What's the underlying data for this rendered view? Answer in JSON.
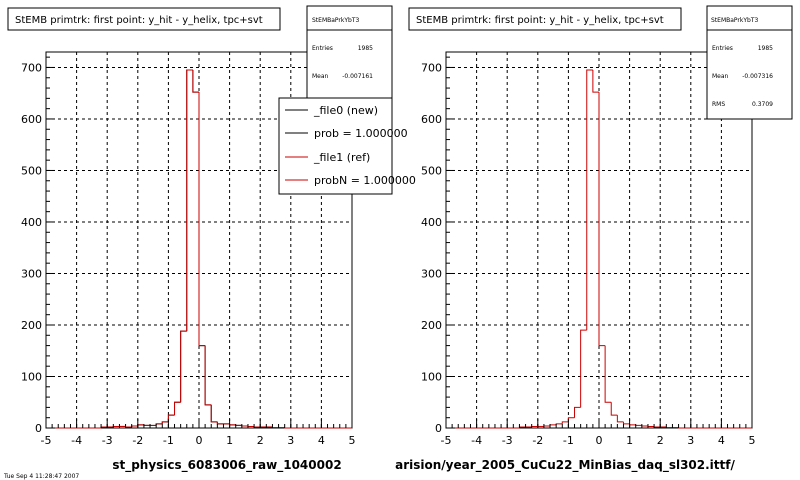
{
  "chart_data": [
    {
      "type": "histogram",
      "title": "StEMB primtrk: first point: y_hit - y_helix, tpc+svt",
      "xlabel": "st_physics_6083006_raw_1040002",
      "xlim": [
        -5,
        5
      ],
      "ylim": [
        0,
        730
      ],
      "xticks": [
        "-5",
        "-4",
        "-3",
        "-2",
        "-1",
        "0",
        "1",
        "2",
        "3",
        "4",
        "5"
      ],
      "yticks": [
        "0",
        "100",
        "200",
        "300",
        "400",
        "500",
        "600",
        "700"
      ],
      "grid": true,
      "bin_edges": [
        -5.0,
        -4.8,
        -4.6,
        -4.4,
        -4.2,
        -4.0,
        -3.8,
        -3.6,
        -3.4,
        -3.2,
        -3.0,
        -2.8,
        -2.6,
        -2.4,
        -2.2,
        -2.0,
        -1.8,
        -1.6,
        -1.4,
        -1.2,
        -1.0,
        -0.8,
        -0.6,
        -0.4,
        -0.2,
        0.0,
        0.2,
        0.4,
        0.6,
        0.8,
        1.0,
        1.2,
        1.4,
        1.6,
        1.8,
        2.0,
        2.2,
        2.4,
        2.6,
        2.8,
        3.0,
        3.2,
        3.4,
        3.6,
        3.8,
        4.0,
        4.2,
        4.4,
        4.6,
        4.8,
        5.0
      ],
      "series": [
        {
          "name": "_file0 (new)",
          "color": "#000000",
          "values": [
            0,
            0,
            0,
            0,
            0,
            0,
            0,
            0,
            0,
            2,
            2,
            3,
            3,
            2,
            4,
            6,
            5,
            5,
            8,
            12,
            25,
            50,
            188,
            695,
            652,
            160,
            45,
            12,
            8,
            8,
            6,
            5,
            4,
            3,
            2,
            2,
            2,
            1,
            1,
            0,
            0,
            0,
            0,
            0,
            0,
            0,
            0,
            0,
            0,
            0
          ]
        },
        {
          "name": "_file1 (ref)",
          "color": "#cc0000",
          "values": [
            0,
            0,
            0,
            0,
            0,
            0,
            0,
            0,
            0,
            2,
            2,
            3,
            3,
            2,
            4,
            6,
            5,
            5,
            8,
            12,
            25,
            50,
            188,
            695,
            652,
            160,
            45,
            12,
            8,
            8,
            6,
            5,
            4,
            3,
            2,
            2,
            2,
            1,
            1,
            0,
            0,
            0,
            0,
            0,
            0,
            0,
            0,
            0,
            0,
            0
          ]
        }
      ],
      "stats": {
        "header": "StEMBaPrkYbT3",
        "rows": [
          {
            "label": "Entries",
            "value": "1985"
          },
          {
            "label": "Mean",
            "value": "-0.007161"
          }
        ]
      },
      "legend": {
        "placement": "top-right",
        "entries": [
          {
            "label": "_file0 (new)",
            "color": "#000000"
          },
          {
            "label": "prob = 1.000000",
            "color": "#000000"
          },
          {
            "label": "_file1 (ref)",
            "color": "#cc0000"
          },
          {
            "label": "probN = 1.000000",
            "color": "#cc0000"
          }
        ]
      }
    },
    {
      "type": "histogram",
      "title": "StEMB primtrk: first point: y_hit - y_helix, tpc+svt",
      "xlabel": "arision/year_2005_CuCu22_MinBias_daq_sl302.ittf/",
      "xlim": [
        -5,
        5
      ],
      "ylim": [
        0,
        730
      ],
      "xticks": [
        "-5",
        "-4",
        "-3",
        "-2",
        "-1",
        "0",
        "1",
        "2",
        "3",
        "4",
        "5"
      ],
      "yticks": [
        "0",
        "100",
        "200",
        "300",
        "400",
        "500",
        "600",
        "700"
      ],
      "grid": true,
      "bin_edges": [
        -5.0,
        -4.8,
        -4.6,
        -4.4,
        -4.2,
        -4.0,
        -3.8,
        -3.6,
        -3.4,
        -3.2,
        -3.0,
        -2.8,
        -2.6,
        -2.4,
        -2.2,
        -2.0,
        -1.8,
        -1.6,
        -1.4,
        -1.2,
        -1.0,
        -0.8,
        -0.6,
        -0.4,
        -0.2,
        0.0,
        0.2,
        0.4,
        0.6,
        0.8,
        1.0,
        1.2,
        1.4,
        1.6,
        1.8,
        2.0,
        2.2,
        2.4,
        2.6,
        2.8,
        3.0,
        3.2,
        3.4,
        3.6,
        3.8,
        4.0,
        4.2,
        4.4,
        4.6,
        4.8,
        5.0
      ],
      "series": [
        {
          "name": "",
          "color": "#cc0000",
          "values": [
            0,
            0,
            0,
            0,
            0,
            0,
            0,
            0,
            0,
            0,
            0,
            0,
            2,
            2,
            3,
            3,
            4,
            6,
            8,
            12,
            20,
            40,
            190,
            695,
            652,
            160,
            50,
            25,
            12,
            8,
            6,
            5,
            4,
            3,
            2,
            2,
            1,
            1,
            0,
            0,
            0,
            0,
            0,
            0,
            0,
            0,
            0,
            0,
            0,
            0
          ]
        }
      ],
      "stats": {
        "header": "StEMBaPrkYbT3",
        "rows": [
          {
            "label": "Entries",
            "value": "1985"
          },
          {
            "label": "Mean",
            "value": "-0.007316"
          },
          {
            "label": "RMS",
            "value": "0.3709"
          }
        ]
      }
    }
  ],
  "footer": {
    "text": "Tue Sep 4 11:28:47 2007"
  }
}
